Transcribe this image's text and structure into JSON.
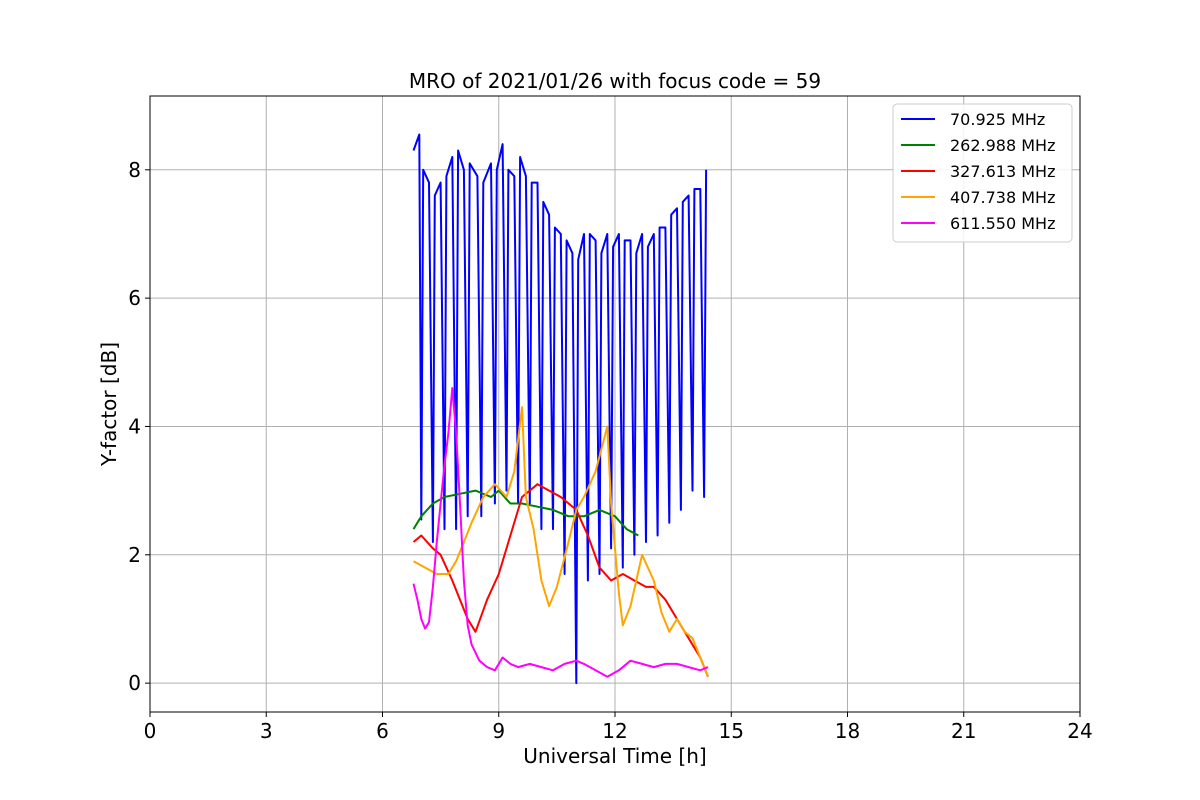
{
  "chart_data": {
    "type": "line",
    "title": "MRO of 2021/01/26 with focus code = 59",
    "xlabel": "Universal Time [h]",
    "ylabel": "Y-factor [dB]",
    "xlim": [
      0,
      24
    ],
    "ylim": [
      -0.45,
      9.15
    ],
    "x_ticks": [
      0,
      3,
      6,
      9,
      12,
      15,
      18,
      21,
      24
    ],
    "y_ticks": [
      0,
      2,
      4,
      6,
      8
    ],
    "grid": true,
    "legend_position": "top-right",
    "series": [
      {
        "name": " 70.925 MHz",
        "color": "#0000ff",
        "points": [
          [
            6.8,
            8.3
          ],
          [
            6.95,
            8.55
          ],
          [
            7.0,
            2.55
          ],
          [
            7.05,
            8.0
          ],
          [
            7.2,
            7.8
          ],
          [
            7.3,
            2.2
          ],
          [
            7.35,
            7.6
          ],
          [
            7.5,
            7.8
          ],
          [
            7.6,
            2.4
          ],
          [
            7.65,
            7.9
          ],
          [
            7.8,
            8.2
          ],
          [
            7.9,
            2.4
          ],
          [
            7.95,
            8.3
          ],
          [
            8.1,
            8.0
          ],
          [
            8.2,
            2.6
          ],
          [
            8.25,
            8.1
          ],
          [
            8.45,
            7.9
          ],
          [
            8.55,
            2.6
          ],
          [
            8.6,
            7.8
          ],
          [
            8.8,
            8.1
          ],
          [
            8.9,
            2.8
          ],
          [
            8.95,
            8.0
          ],
          [
            9.1,
            8.4
          ],
          [
            9.2,
            3.0
          ],
          [
            9.25,
            8.0
          ],
          [
            9.4,
            7.9
          ],
          [
            9.5,
            2.8
          ],
          [
            9.55,
            8.2
          ],
          [
            9.7,
            7.9
          ],
          [
            9.8,
            2.8
          ],
          [
            9.85,
            7.8
          ],
          [
            10.0,
            7.8
          ],
          [
            10.1,
            2.4
          ],
          [
            10.15,
            7.5
          ],
          [
            10.3,
            7.3
          ],
          [
            10.4,
            2.4
          ],
          [
            10.45,
            7.1
          ],
          [
            10.6,
            7.0
          ],
          [
            10.7,
            1.7
          ],
          [
            10.75,
            6.9
          ],
          [
            10.9,
            6.7
          ],
          [
            11.0,
            0.0
          ],
          [
            11.05,
            6.6
          ],
          [
            11.2,
            7.0
          ],
          [
            11.3,
            1.6
          ],
          [
            11.35,
            7.0
          ],
          [
            11.5,
            6.9
          ],
          [
            11.6,
            1.7
          ],
          [
            11.65,
            6.7
          ],
          [
            11.8,
            7.0
          ],
          [
            11.9,
            2.1
          ],
          [
            11.95,
            6.8
          ],
          [
            12.1,
            7.0
          ],
          [
            12.2,
            1.8
          ],
          [
            12.25,
            6.9
          ],
          [
            12.4,
            6.9
          ],
          [
            12.5,
            2.0
          ],
          [
            12.55,
            6.7
          ],
          [
            12.7,
            7.0
          ],
          [
            12.8,
            2.2
          ],
          [
            12.85,
            6.8
          ],
          [
            13.0,
            7.0
          ],
          [
            13.1,
            2.3
          ],
          [
            13.15,
            7.1
          ],
          [
            13.3,
            7.1
          ],
          [
            13.4,
            2.5
          ],
          [
            13.45,
            7.3
          ],
          [
            13.6,
            7.4
          ],
          [
            13.7,
            2.7
          ],
          [
            13.75,
            7.5
          ],
          [
            13.9,
            7.6
          ],
          [
            14.0,
            3.0
          ],
          [
            14.05,
            7.7
          ],
          [
            14.2,
            7.7
          ],
          [
            14.3,
            2.9
          ],
          [
            14.35,
            8.0
          ]
        ]
      },
      {
        "name": "262.988 MHz",
        "color": "#008000",
        "points": [
          [
            6.8,
            2.4
          ],
          [
            7.0,
            2.6
          ],
          [
            7.3,
            2.8
          ],
          [
            7.6,
            2.9
          ],
          [
            8.0,
            2.95
          ],
          [
            8.4,
            3.0
          ],
          [
            8.8,
            2.9
          ],
          [
            9.0,
            3.0
          ],
          [
            9.3,
            2.8
          ],
          [
            9.6,
            2.8
          ],
          [
            10.0,
            2.75
          ],
          [
            10.4,
            2.7
          ],
          [
            10.8,
            2.6
          ],
          [
            11.2,
            2.6
          ],
          [
            11.6,
            2.7
          ],
          [
            12.0,
            2.6
          ],
          [
            12.3,
            2.4
          ],
          [
            12.6,
            2.3
          ]
        ]
      },
      {
        "name": "327.613 MHz",
        "color": "#ff0000",
        "points": [
          [
            6.8,
            2.2
          ],
          [
            7.0,
            2.3
          ],
          [
            7.3,
            2.1
          ],
          [
            7.5,
            2.0
          ],
          [
            7.8,
            1.6
          ],
          [
            8.0,
            1.3
          ],
          [
            8.2,
            1.0
          ],
          [
            8.4,
            0.8
          ],
          [
            8.7,
            1.3
          ],
          [
            9.0,
            1.7
          ],
          [
            9.3,
            2.3
          ],
          [
            9.6,
            2.9
          ],
          [
            10.0,
            3.1
          ],
          [
            10.3,
            3.0
          ],
          [
            10.6,
            2.9
          ],
          [
            11.0,
            2.7
          ],
          [
            11.3,
            2.3
          ],
          [
            11.6,
            1.8
          ],
          [
            11.9,
            1.6
          ],
          [
            12.2,
            1.7
          ],
          [
            12.5,
            1.6
          ],
          [
            12.8,
            1.5
          ],
          [
            13.0,
            1.5
          ],
          [
            13.3,
            1.3
          ],
          [
            13.6,
            1.0
          ],
          [
            13.9,
            0.7
          ],
          [
            14.2,
            0.4
          ],
          [
            14.4,
            0.1
          ]
        ]
      },
      {
        "name": "407.738 MHz",
        "color": "#ffa500",
        "points": [
          [
            6.8,
            1.9
          ],
          [
            7.1,
            1.8
          ],
          [
            7.4,
            1.7
          ],
          [
            7.7,
            1.7
          ],
          [
            7.9,
            1.9
          ],
          [
            8.1,
            2.2
          ],
          [
            8.3,
            2.5
          ],
          [
            8.6,
            2.9
          ],
          [
            8.9,
            3.1
          ],
          [
            9.2,
            2.9
          ],
          [
            9.4,
            3.3
          ],
          [
            9.6,
            4.3
          ],
          [
            9.7,
            2.9
          ],
          [
            9.9,
            2.4
          ],
          [
            10.1,
            1.6
          ],
          [
            10.3,
            1.2
          ],
          [
            10.5,
            1.5
          ],
          [
            10.8,
            2.2
          ],
          [
            11.0,
            2.7
          ],
          [
            11.2,
            2.9
          ],
          [
            11.5,
            3.3
          ],
          [
            11.8,
            4.0
          ],
          [
            11.9,
            2.8
          ],
          [
            12.1,
            1.4
          ],
          [
            12.2,
            0.9
          ],
          [
            12.4,
            1.2
          ],
          [
            12.7,
            2.0
          ],
          [
            13.0,
            1.6
          ],
          [
            13.2,
            1.1
          ],
          [
            13.4,
            0.8
          ],
          [
            13.6,
            1.0
          ],
          [
            13.8,
            0.8
          ],
          [
            14.0,
            0.7
          ],
          [
            14.2,
            0.4
          ],
          [
            14.4,
            0.1
          ]
        ]
      },
      {
        "name": "611.550 MHz",
        "color": "#ff00ff",
        "points": [
          [
            6.8,
            1.55
          ],
          [
            6.9,
            1.3
          ],
          [
            7.0,
            1.0
          ],
          [
            7.1,
            0.85
          ],
          [
            7.2,
            0.95
          ],
          [
            7.3,
            1.5
          ],
          [
            7.4,
            2.2
          ],
          [
            7.5,
            2.8
          ],
          [
            7.6,
            3.4
          ],
          [
            7.7,
            3.9
          ],
          [
            7.8,
            4.6
          ],
          [
            7.9,
            3.9
          ],
          [
            8.0,
            2.8
          ],
          [
            8.1,
            1.6
          ],
          [
            8.2,
            0.9
          ],
          [
            8.3,
            0.6
          ],
          [
            8.5,
            0.35
          ],
          [
            8.7,
            0.25
          ],
          [
            8.9,
            0.2
          ],
          [
            9.1,
            0.4
          ],
          [
            9.3,
            0.3
          ],
          [
            9.5,
            0.25
          ],
          [
            9.8,
            0.3
          ],
          [
            10.1,
            0.25
          ],
          [
            10.4,
            0.2
          ],
          [
            10.7,
            0.3
          ],
          [
            11.0,
            0.35
          ],
          [
            11.2,
            0.3
          ],
          [
            11.5,
            0.2
          ],
          [
            11.8,
            0.1
          ],
          [
            12.1,
            0.2
          ],
          [
            12.4,
            0.35
          ],
          [
            12.7,
            0.3
          ],
          [
            13.0,
            0.25
          ],
          [
            13.3,
            0.3
          ],
          [
            13.6,
            0.3
          ],
          [
            13.9,
            0.25
          ],
          [
            14.2,
            0.2
          ],
          [
            14.4,
            0.25
          ]
        ]
      }
    ]
  }
}
